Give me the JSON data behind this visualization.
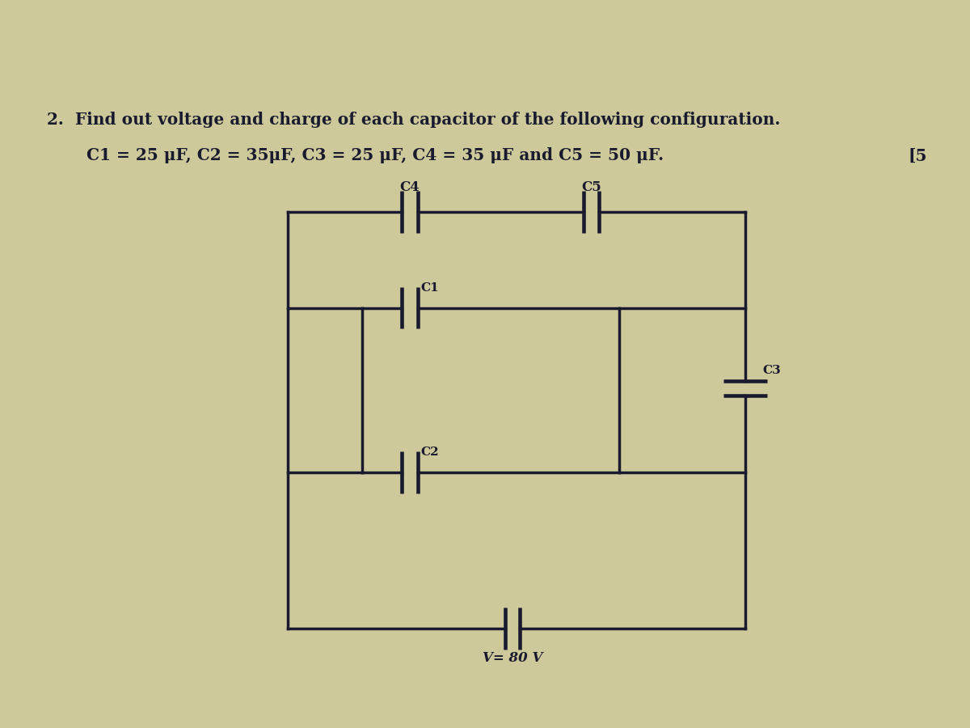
{
  "title_line1": "2.  Find out voltage and charge of each capacitor of the following configuration.",
  "title_line2": "C1 = 25 μF, C2 = 35μF, C3 = 25 μF, C4 = 35 μF and C5 = 50 μF.",
  "marks": "[5",
  "voltage_label": "V= 80 V",
  "bg_color": "#cec99a",
  "line_color": "#1a1a2e",
  "text_color": "#1a1a2e",
  "title_fontsize": 14.5,
  "label_fontsize": 12,
  "line_width": 2.5,
  "OL": 3.6,
  "OR": 9.4,
  "OT": 6.4,
  "OB": 1.2,
  "C4x": 5.15,
  "C5x": 7.45,
  "IL": 4.55,
  "IR": 7.8,
  "IT": 5.2,
  "IB": 3.15,
  "C1y": 4.55,
  "C2y": 3.55,
  "C3x": 9.4,
  "C3y": 4.2,
  "Vx": 6.45,
  "VB": 1.2
}
